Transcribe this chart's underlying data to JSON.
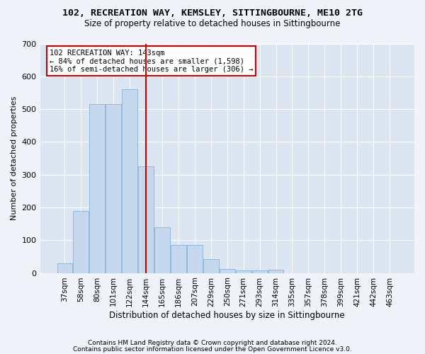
{
  "title_line1": "102, RECREATION WAY, KEMSLEY, SITTINGBOURNE, ME10 2TG",
  "title_line2": "Size of property relative to detached houses in Sittingbourne",
  "xlabel": "Distribution of detached houses by size in Sittingbourne",
  "ylabel": "Number of detached properties",
  "footer_line1": "Contains HM Land Registry data © Crown copyright and database right 2024.",
  "footer_line2": "Contains public sector information licensed under the Open Government Licence v3.0.",
  "categories": [
    "37sqm",
    "58sqm",
    "80sqm",
    "101sqm",
    "122sqm",
    "144sqm",
    "165sqm",
    "186sqm",
    "207sqm",
    "229sqm",
    "250sqm",
    "271sqm",
    "293sqm",
    "314sqm",
    "335sqm",
    "357sqm",
    "378sqm",
    "399sqm",
    "421sqm",
    "442sqm",
    "463sqm"
  ],
  "values": [
    30,
    190,
    515,
    515,
    560,
    325,
    140,
    85,
    85,
    42,
    12,
    8,
    8,
    10,
    0,
    0,
    0,
    0,
    0,
    0,
    0
  ],
  "bar_color": "#c5d8ee",
  "bar_edge_color": "#8ab0d4",
  "plot_bg_color": "#dce6f2",
  "fig_bg_color": "#f0f4fa",
  "grid_color": "#ffffff",
  "vline_x_index": 5.0,
  "vline_color": "#cc0000",
  "annotation_line1": "102 RECREATION WAY: 143sqm",
  "annotation_line2": "← 84% of detached houses are smaller (1,598)",
  "annotation_line3": "16% of semi-detached houses are larger (306) →",
  "annotation_box_color": "#cc0000",
  "ylim_max": 700,
  "yticks": [
    0,
    100,
    200,
    300,
    400,
    500,
    600,
    700
  ]
}
